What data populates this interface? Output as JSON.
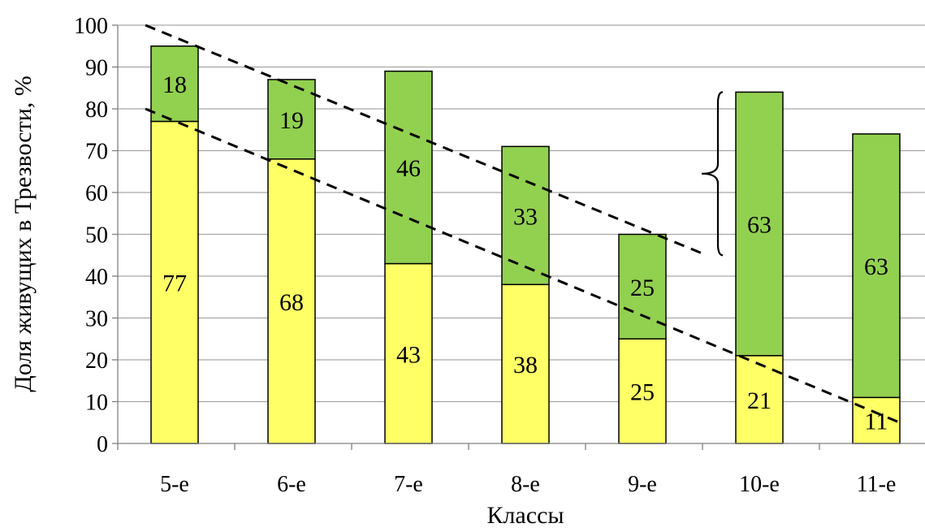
{
  "chart_data": {
    "type": "bar",
    "stacked": true,
    "categories": [
      "5-е",
      "6-е",
      "7-е",
      "8-е",
      "9-е",
      "10-е",
      "11-е"
    ],
    "series": [
      {
        "values": [
          77,
          68,
          43,
          38,
          25,
          21,
          11
        ],
        "color": "#ffff66"
      },
      {
        "values": [
          18,
          19,
          46,
          33,
          25,
          63,
          63
        ],
        "color": "#92d050"
      }
    ],
    "xlabel": "Классы",
    "ylabel": "Доля живущих в Трезвости, %",
    "ylim": [
      0,
      100
    ],
    "yticks": [
      0,
      10,
      20,
      30,
      40,
      50,
      60,
      70,
      80,
      90,
      100
    ],
    "grid": true,
    "legend": "none",
    "annotations": {
      "trend_lines": [
        {
          "style": "dashed",
          "from": {
            "x": -0.25,
            "y": 80
          },
          "to": {
            "x": 6.2,
            "y": 5
          }
        },
        {
          "style": "dashed",
          "from": {
            "x": -0.25,
            "y": 100
          },
          "to": {
            "x": 4.55,
            "y": 45
          }
        }
      ],
      "brace": {
        "category_index": 5,
        "y_from": 45,
        "y_to": 84,
        "side": "left"
      }
    }
  }
}
